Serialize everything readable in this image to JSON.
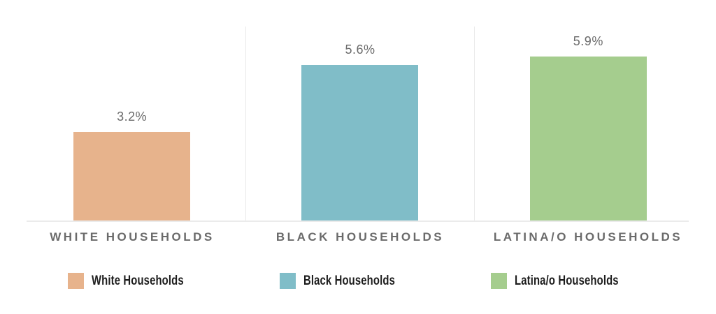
{
  "chart_data": {
    "type": "bar",
    "categories": [
      "WHITE HOUSEHOLDS",
      "BLACK HOUSEHOLDS",
      "LATINA/O HOUSEHOLDS"
    ],
    "values": [
      3.2,
      5.6,
      5.9
    ],
    "value_labels": [
      "3.2%",
      "5.6%",
      "5.9%"
    ],
    "colors": [
      "#e7b38c",
      "#80bdc8",
      "#a5cd8e"
    ],
    "title": "",
    "xlabel": "",
    "ylabel": "",
    "ylim": [
      0,
      6.975
    ],
    "grid": "vertical category separators only, no horizontal gridlines, y-axis hidden",
    "legend": {
      "position": "bottom",
      "entries": [
        {
          "label": "White Households",
          "color": "#e7b38c"
        },
        {
          "label": "Black Households",
          "color": "#80bdc8"
        },
        {
          "label": "Latina/o Households",
          "color": "#a5cd8e"
        }
      ]
    },
    "annotation_style": {
      "value_label_color": "#6b6b6b",
      "category_label_color": "#6a6a6a",
      "axis_line_color": "#ebebeb"
    }
  }
}
